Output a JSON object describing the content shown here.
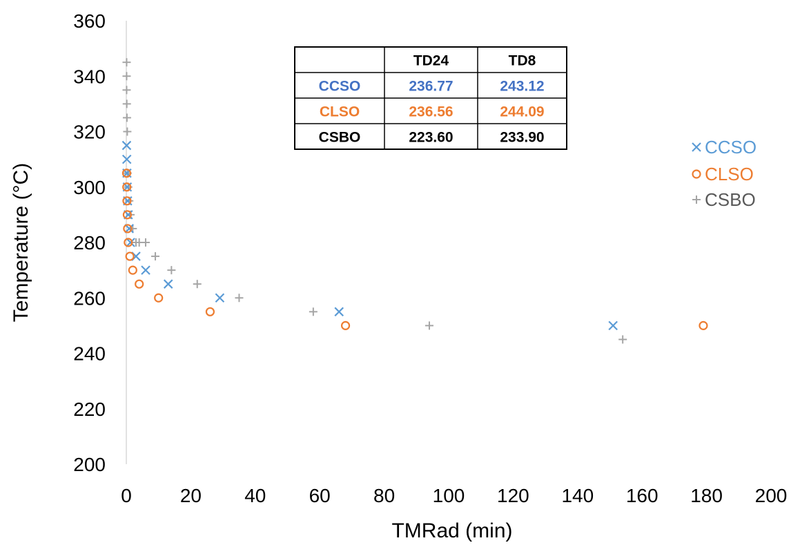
{
  "chart_data": {
    "type": "scatter",
    "xlabel": "TMRad (min)",
    "ylabel": "Temperature (°C)",
    "xlim": [
      0,
      200
    ],
    "ylim": [
      200,
      360
    ],
    "x_ticks": [
      "0",
      "20",
      "40",
      "60",
      "80",
      "100",
      "120",
      "140",
      "160",
      "180",
      "200"
    ],
    "y_ticks": [
      "200",
      "220",
      "240",
      "260",
      "280",
      "300",
      "320",
      "340",
      "360"
    ],
    "grid": false,
    "legend_position": "right",
    "series": [
      {
        "name": "CCSO",
        "marker": "x",
        "color": "#5b9bd5",
        "x": [
          0.1,
          0.15,
          0.2,
          0.3,
          0.4,
          0.6,
          0.9,
          1.3,
          3,
          6,
          13,
          29,
          66,
          151
        ],
        "y": [
          315,
          310,
          305,
          300,
          295,
          290,
          285,
          280,
          275,
          270,
          265,
          260,
          255,
          250
        ]
      },
      {
        "name": "CLSO",
        "marker": "o",
        "color": "#ed7d31",
        "x": [
          0.1,
          0.15,
          0.2,
          0.3,
          0.4,
          0.6,
          1.1,
          2,
          4,
          10,
          26,
          68,
          179
        ],
        "y": [
          305,
          300,
          295,
          290,
          285,
          280,
          275,
          270,
          265,
          260,
          255,
          250,
          250
        ]
      },
      {
        "name": "CSBO",
        "marker": "+",
        "color": "#a5a5a5",
        "x": [
          0.1,
          0.1,
          0.1,
          0.15,
          0.2,
          0.3,
          0.4,
          0.6,
          0.9,
          1.3,
          2,
          3,
          4,
          6,
          9,
          14,
          22,
          35,
          58,
          94,
          154
        ],
        "y": [
          345,
          340,
          335,
          330,
          325,
          320,
          305,
          300,
          295,
          290,
          285,
          280,
          280,
          280,
          275,
          270,
          265,
          260,
          255,
          250,
          245
        ]
      }
    ],
    "table": {
      "headers": [
        "",
        "TD24",
        "TD8"
      ],
      "rows": [
        {
          "label": "CCSO",
          "values": [
            "236.77",
            "243.12"
          ],
          "color": "#4472c4"
        },
        {
          "label": "CLSO",
          "values": [
            "236.56",
            "244.09"
          ],
          "color": "#ed7d31"
        },
        {
          "label": "CSBO",
          "values": [
            "223.60",
            "233.90"
          ],
          "color": "#000000"
        }
      ]
    }
  }
}
